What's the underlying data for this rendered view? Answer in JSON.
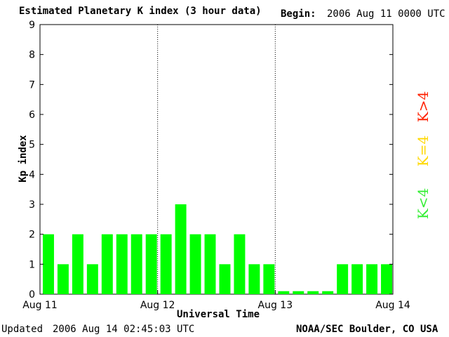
{
  "header": {
    "title": "Estimated Planetary K index (3 hour data)",
    "begin_label": "Begin:",
    "begin_value": "2006 Aug 11 0000 UTC"
  },
  "footer": {
    "updated_label": "Updated",
    "updated_value": "2006 Aug 14 02:45:03 UTC",
    "source": "NOAA/SEC Boulder, CO USA"
  },
  "legend": {
    "high": {
      "label": "K>4",
      "color": "#ff2000"
    },
    "equal": {
      "label": "K=4",
      "color": "#ffd800"
    },
    "low": {
      "label": "K<4",
      "color": "#33ee33"
    }
  },
  "chart_data": {
    "type": "bar",
    "title": "Estimated Planetary K index (3 hour data)",
    "xlabel": "Universal Time",
    "ylabel": "Kp index",
    "ylim": [
      0,
      9
    ],
    "yticks": [
      0,
      1,
      2,
      3,
      4,
      5,
      6,
      7,
      8,
      9
    ],
    "xticks": [
      "Aug 11",
      "Aug 12",
      "Aug 13",
      "Aug 14"
    ],
    "bar_color": "#00ff00",
    "day_dividers": "dotted",
    "values": [
      2,
      1,
      2,
      1,
      2,
      2,
      2,
      2,
      2,
      3,
      2,
      2,
      1,
      2,
      1,
      1,
      0.1,
      0.1,
      0.1,
      0.1,
      1,
      1,
      1,
      1
    ]
  }
}
